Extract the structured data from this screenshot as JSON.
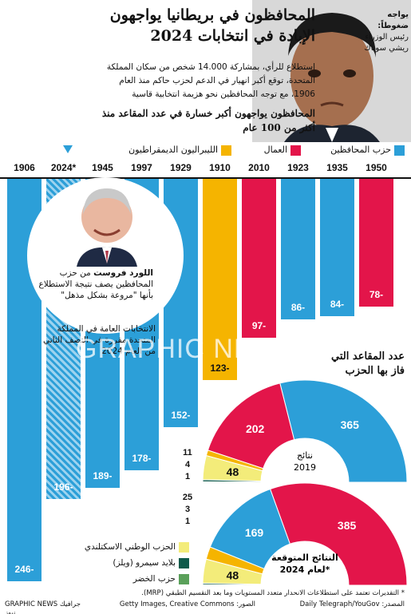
{
  "title": "المحافظون في بريطانيا يواجهون الإبادة في انتخابات 2024",
  "intro": "استطلاع للرأي، بمشاركة 14.000 شخص من سكان المملكة المتحدة، توقع أكبر انهيار في الدعم لحزب حاكم منذ العام 1906، مع توجه المحافظين نحو هزيمة انتخابية قاسية",
  "subhead": "المحافظون يواجهون أكبر خسارة في عدد المقاعد منذ أكثر من 100 عام",
  "photo_caption": {
    "line1": "يواجه ضغوطاً:",
    "line2": "رئيس الوزراء ريشي سوناك"
  },
  "legend": {
    "conservative": "حزب المحافظين",
    "labour": "العمال",
    "libdem": "الليبراليون الديمقراطيون"
  },
  "lord_frost": {
    "name": "اللورد فروست",
    "text": "من حزب المحافظين يصف نتيجة الاستطلاع بأنها \"مروعة بشكل مذهل\""
  },
  "general_note": "الانتخابات العامة في المملكة المتحدة مقررة في النصف الثاني من العام 2024",
  "seats_heading": "عدد المقاعد التي فاز بها الحزب",
  "others_legend": {
    "snp": "الحزب الوطني الاسكتلندي",
    "plaid": "بلايد سيمرو (ويلز)",
    "green": "حزب الخضر"
  },
  "footnote": "* التقديرات تعتمد على استطلاعات الانحدار متعدد المستويات وما بعد التقسيم الطبقي (MRP).",
  "source": "المصدر: Daily Telegraph/YouGov",
  "photos": "الصور: Getty Images, Creative Commons",
  "brand": "GRAPHIC NEWS جرافيك نيوز",
  "watermark": "GRAPHIC NEWS",
  "colors": {
    "conservative": "#2c9fd8",
    "labour": "#e3154a",
    "libdem": "#f5b400",
    "snp": "#f3ec7a",
    "plaid": "#0f5a4a",
    "green": "#5aa05a"
  },
  "chart_data": [
    {
      "type": "bar",
      "title": "المحافظون يواجهون أكبر خسارة في عدد المقاعد منذ أكثر من 100 عام",
      "unit": "seats lost by governing party",
      "categories": [
        "1906",
        "2024*",
        "1945",
        "1997",
        "1929",
        "1910",
        "2010",
        "1923",
        "1935",
        "1950"
      ],
      "values": [
        -246,
        -196,
        -189,
        -178,
        -152,
        -123,
        -97,
        -86,
        -84,
        -78
      ],
      "labels": [
        "246-",
        "196-",
        "189-",
        "178-",
        "152-",
        "123-",
        "97-",
        "86-",
        "84-",
        "78-"
      ],
      "party": [
        "conservative",
        "conservative",
        "conservative",
        "conservative",
        "conservative",
        "libdem",
        "labour",
        "conservative",
        "conservative",
        "labour"
      ],
      "ylim": [
        -250,
        0
      ]
    },
    {
      "type": "pie",
      "title": "نتائج 2019",
      "title_line1": "نتائج",
      "title_line2": "2019",
      "slices": [
        {
          "party": "conservative",
          "value": 365
        },
        {
          "party": "labour",
          "value": 202
        },
        {
          "party": "libdem",
          "value": 11
        },
        {
          "party": "snp",
          "value": 48
        },
        {
          "party": "plaid",
          "value": 4
        },
        {
          "party": "green",
          "value": 1
        }
      ],
      "outside_labels": [
        "11",
        "4",
        "1"
      ]
    },
    {
      "type": "pie",
      "title": "النتائج المتوقعة لعام 2024*",
      "title_line1": "النتائج المتوقعة",
      "title_line2": "لعام 2024*",
      "slices": [
        {
          "party": "labour",
          "value": 385
        },
        {
          "party": "conservative",
          "value": 169
        },
        {
          "party": "libdem",
          "value": 25
        },
        {
          "party": "snp",
          "value": 48
        },
        {
          "party": "plaid",
          "value": 3
        },
        {
          "party": "green",
          "value": 1
        }
      ],
      "outside_labels": [
        "25",
        "3",
        "1"
      ]
    }
  ]
}
